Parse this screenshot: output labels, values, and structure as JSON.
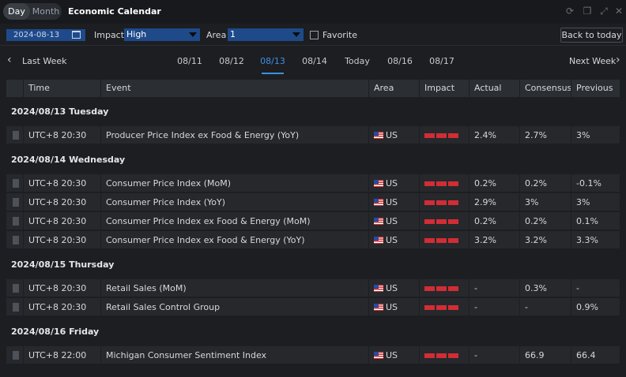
{
  "header": {
    "segments": [
      "Day",
      "Month"
    ],
    "title": "Economic Calendar"
  },
  "filters": {
    "date": "2024-08-13",
    "impact_label": "Impact",
    "impact_value": "High",
    "area_label": "Area",
    "area_value": "1",
    "favorite_label": "Favorite",
    "today_button": "Back to today"
  },
  "week_nav": {
    "prev": "Last Week",
    "next": "Next Week",
    "days": [
      "08/11",
      "08/12",
      "08/13",
      "08/14",
      "Today",
      "08/16",
      "08/17"
    ],
    "active_day": "08/13"
  },
  "table": {
    "columns": [
      "Time",
      "Event",
      "Area",
      "Impact",
      "Actual",
      "Consensus",
      "Previous"
    ],
    "impact_color": "#d22d35",
    "groups": [
      {
        "label": "2024/08/13 Tuesday",
        "rows": [
          {
            "time": "UTC+8 20:30",
            "event": "Producer Price Index ex Food & Energy (YoY)",
            "area": "US",
            "actual": "2.4%",
            "consensus": "2.7%",
            "previous": "3%"
          }
        ]
      },
      {
        "label": "2024/08/14 Wednesday",
        "rows": [
          {
            "time": "UTC+8 20:30",
            "event": "Consumer Price Index (MoM)",
            "area": "US",
            "actual": "0.2%",
            "consensus": "0.2%",
            "previous": "-0.1%"
          },
          {
            "time": "UTC+8 20:30",
            "event": "Consumer Price Index (YoY)",
            "area": "US",
            "actual": "2.9%",
            "consensus": "3%",
            "previous": "3%"
          },
          {
            "time": "UTC+8 20:30",
            "event": "Consumer Price Index ex Food & Energy (MoM)",
            "area": "US",
            "actual": "0.2%",
            "consensus": "0.2%",
            "previous": "0.1%"
          },
          {
            "time": "UTC+8 20:30",
            "event": "Consumer Price Index ex Food & Energy (YoY)",
            "area": "US",
            "actual": "3.2%",
            "consensus": "3.2%",
            "previous": "3.3%"
          }
        ]
      },
      {
        "label": "2024/08/15 Thursday",
        "rows": [
          {
            "time": "UTC+8 20:30",
            "event": "Retail Sales (MoM)",
            "area": "US",
            "actual": "-",
            "consensus": "0.3%",
            "previous": "-"
          },
          {
            "time": "UTC+8 20:30",
            "event": "Retail Sales Control Group",
            "area": "US",
            "actual": "-",
            "consensus": "-",
            "previous": "0.9%"
          }
        ]
      },
      {
        "label": "2024/08/16 Friday",
        "rows": [
          {
            "time": "UTC+8 22:00",
            "event": "Michigan Consumer Sentiment Index",
            "area": "US",
            "actual": "-",
            "consensus": "66.9",
            "previous": "66.4"
          }
        ]
      }
    ]
  }
}
